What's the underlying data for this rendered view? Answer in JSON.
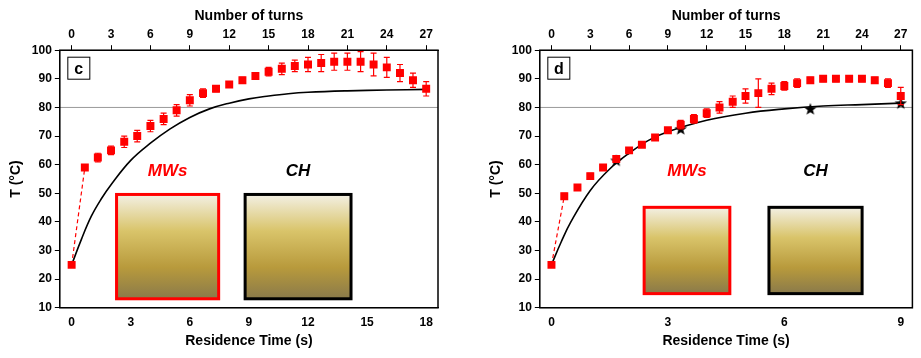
{
  "chart_data": [
    {
      "type": "scatter",
      "title": "c",
      "x_label": "Residence Time (s)",
      "x2_label": "Number of turns",
      "y_label": "T (°C)",
      "xlim": [
        -0.6,
        18.6
      ],
      "xticks": [
        0,
        3,
        6,
        9,
        12,
        15,
        18
      ],
      "x2lim": [
        -0.9,
        27.9
      ],
      "x2ticks": [
        0,
        3,
        6,
        9,
        12,
        15,
        18,
        21,
        24,
        27
      ],
      "ylim": [
        10,
        100
      ],
      "yticks": [
        10,
        20,
        30,
        40,
        50,
        60,
        70,
        80,
        90,
        100
      ],
      "hline": 80,
      "grid": false,
      "series": [
        {
          "name": "MWs",
          "color": "#ff0000",
          "marker": "square",
          "line_style": "none",
          "x": [
            0,
            0.67,
            1.33,
            2,
            2.67,
            3.33,
            4,
            4.67,
            5.33,
            6,
            6.67,
            7.33,
            8,
            8.67,
            9.33,
            10,
            10.67,
            11.33,
            12,
            12.67,
            13.33,
            14,
            14.67,
            15.33,
            16,
            16.67,
            17.33,
            18
          ],
          "values": [
            25,
            59,
            62.5,
            65,
            68,
            70,
            73.5,
            76,
            79,
            82.5,
            85,
            86.5,
            88,
            89.5,
            91,
            92.5,
            93.5,
            94.5,
            95,
            95.5,
            96,
            96,
            96,
            95,
            94,
            92,
            89.5,
            86.5
          ],
          "errors": [
            0,
            0.5,
            1.5,
            1.5,
            2,
            2,
            2,
            2,
            2,
            2,
            1.5,
            1,
            1,
            1,
            1,
            1.5,
            2,
            2,
            2.5,
            3,
            3,
            3,
            3.5,
            4,
            3.5,
            3,
            2.5,
            2.5
          ]
        },
        {
          "color": "#ff0000",
          "marker": "none",
          "line_style": "dashed",
          "x": [
            0,
            0.67
          ],
          "values": [
            25,
            59
          ]
        },
        {
          "name": "CH",
          "color": "#000000",
          "marker": "none",
          "line_style": "solid",
          "x": [
            0,
            0.5,
            1,
            1.5,
            2,
            3,
            4,
            5,
            6,
            7,
            8,
            9,
            10,
            11,
            12,
            14,
            16,
            18
          ],
          "values": [
            25,
            34,
            42,
            48,
            53,
            61.5,
            67.5,
            72.5,
            76.5,
            79.5,
            81.5,
            83,
            84,
            84.8,
            85.3,
            85.8,
            86.1,
            86.3
          ]
        }
      ]
    },
    {
      "type": "scatter",
      "title": "d",
      "x_label": "Residence Time (s)",
      "x2_label": "Number of turns",
      "y_label": "T (°C)",
      "xlim": [
        -0.3,
        9.3
      ],
      "xticks": [
        0,
        3,
        6,
        9
      ],
      "x2lim": [
        -0.9,
        27.9
      ],
      "x2ticks": [
        0,
        3,
        6,
        9,
        12,
        15,
        18,
        21,
        24,
        27
      ],
      "ylim": [
        10,
        100
      ],
      "yticks": [
        10,
        20,
        30,
        40,
        50,
        60,
        70,
        80,
        90,
        100
      ],
      "hline": 80,
      "grid": false,
      "series": [
        {
          "name": "MWs",
          "color": "#ff0000",
          "marker": "square",
          "line_style": "none",
          "x": [
            0,
            0.33,
            0.67,
            1,
            1.33,
            1.67,
            2,
            2.33,
            2.67,
            3,
            3.33,
            3.67,
            4,
            4.33,
            4.67,
            5,
            5.33,
            5.67,
            6,
            6.33,
            6.67,
            7,
            7.33,
            7.67,
            8,
            8.33,
            8.67,
            9
          ],
          "values": [
            25,
            49,
            52,
            56,
            59,
            62,
            65,
            67,
            69.5,
            72,
            74,
            76,
            78,
            80,
            82,
            84,
            85,
            86.5,
            87.5,
            88.5,
            89.5,
            90,
            90,
            90,
            90,
            89.5,
            88.5,
            84
          ],
          "errors": [
            0,
            1,
            1,
            1,
            1,
            1,
            1,
            1,
            1,
            1,
            1.5,
            1.5,
            1.5,
            2,
            2,
            2.5,
            5,
            2,
            1.5,
            1.5,
            1,
            1,
            1,
            1,
            1,
            1,
            1.5,
            3
          ]
        },
        {
          "color": "#ff0000",
          "marker": "none",
          "line_style": "dashed",
          "x": [
            0,
            0.33
          ],
          "values": [
            25,
            49
          ]
        },
        {
          "name": "CH",
          "color": "#000000",
          "marker": "none",
          "line_style": "solid",
          "x": [
            0,
            0.25,
            0.5,
            1,
            1.5,
            2,
            2.5,
            3,
            4,
            5,
            6,
            7,
            8,
            9
          ],
          "values": [
            25,
            33,
            40,
            51,
            58.5,
            64,
            68.5,
            71.5,
            75.5,
            78,
            79.5,
            80.5,
            81,
            81.5
          ]
        },
        {
          "color": "#000000",
          "marker": "star",
          "line_style": "none",
          "x": [
            1.67,
            3.33,
            6.67,
            9
          ],
          "values": [
            61.5,
            72.5,
            79.5,
            81.5
          ]
        }
      ]
    }
  ]
}
